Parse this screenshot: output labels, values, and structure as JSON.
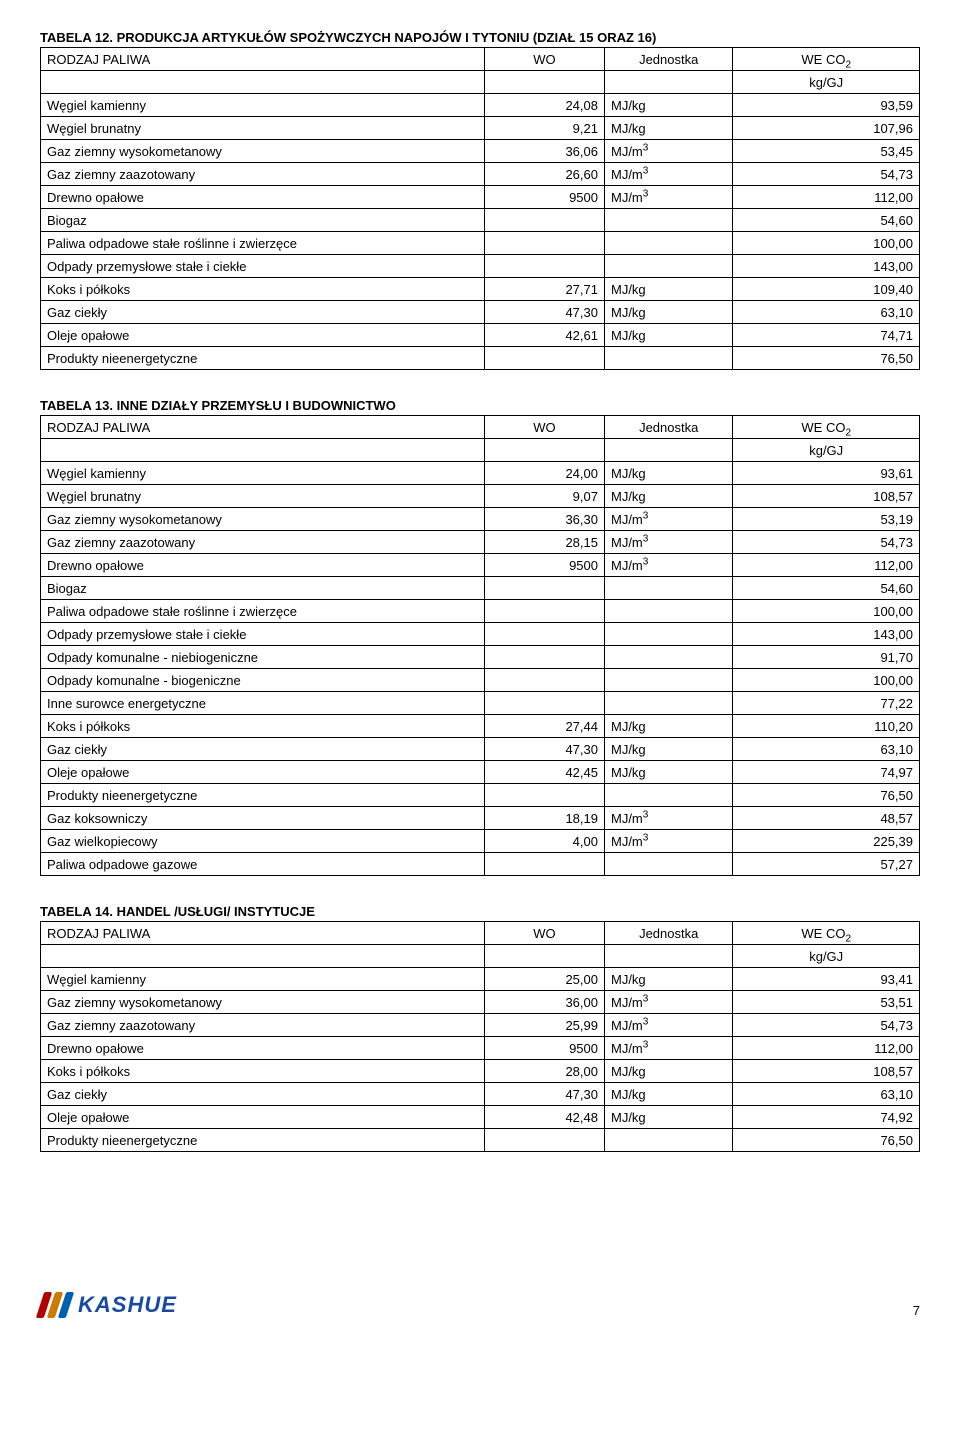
{
  "tables": [
    {
      "caption": "TABELA 12. PRODUKCJA ARTYKUŁÓW SPOŻYWCZYCH NAPOJÓW I TYTONIU (DZIAŁ 15 ORAZ 16)",
      "header": {
        "c0": "RODZAJ PALIWA",
        "c1": "WO",
        "c2": "Jednostka",
        "c3_html": "WE CO<sub>2</sub>"
      },
      "unit_row": "kg/GJ",
      "rows": [
        {
          "name": "Węgiel kamienny",
          "wo": "24,08",
          "unit": "MJ/kg",
          "weco": "93,59"
        },
        {
          "name": "Węgiel brunatny",
          "wo": "9,21",
          "unit": "MJ/kg",
          "weco": "107,96"
        },
        {
          "name": "Gaz ziemny wysokometanowy",
          "wo": "36,06",
          "unit_html": "MJ/m<sup>3</sup>",
          "weco": "53,45"
        },
        {
          "name": "Gaz ziemny zaazotowany",
          "wo": "26,60",
          "unit_html": "MJ/m<sup>3</sup>",
          "weco": "54,73"
        },
        {
          "name": "Drewno opałowe",
          "wo": "9500",
          "unit_html": "MJ/m<sup>3</sup>",
          "weco": "112,00"
        },
        {
          "name": "Biogaz",
          "wo": "",
          "unit": "",
          "weco": "54,60"
        },
        {
          "name": "Paliwa odpadowe stałe roślinne i zwierzęce",
          "wo": "",
          "unit": "",
          "weco": "100,00"
        },
        {
          "name": "Odpady przemysłowe stałe i ciekłe",
          "wo": "",
          "unit": "",
          "weco": "143,00"
        },
        {
          "name": "Koks i półkoks",
          "wo": "27,71",
          "unit": "MJ/kg",
          "weco": "109,40"
        },
        {
          "name": "Gaz ciekły",
          "wo": "47,30",
          "unit": "MJ/kg",
          "weco": "63,10"
        },
        {
          "name": "Oleje opałowe",
          "wo": "42,61",
          "unit": "MJ/kg",
          "weco": "74,71"
        },
        {
          "name": "Produkty nieenergetyczne",
          "wo": "",
          "unit": "",
          "weco": "76,50"
        }
      ]
    },
    {
      "caption": "TABELA 13. INNE DZIAŁY PRZEMYSŁU I BUDOWNICTWO",
      "header": {
        "c0": "RODZAJ PALIWA",
        "c1": "WO",
        "c2": "Jednostka",
        "c3_html": "WE CO<sub>2</sub>"
      },
      "unit_row": "kg/GJ",
      "rows": [
        {
          "name": "Węgiel kamienny",
          "wo": "24,00",
          "unit": "MJ/kg",
          "weco": "93,61"
        },
        {
          "name": "Węgiel brunatny",
          "wo": "9,07",
          "unit": "MJ/kg",
          "weco": "108,57"
        },
        {
          "name": "Gaz ziemny wysokometanowy",
          "wo": "36,30",
          "unit_html": "MJ/m<sup>3</sup>",
          "weco": "53,19"
        },
        {
          "name": "Gaz ziemny zaazotowany",
          "wo": "28,15",
          "unit_html": "MJ/m<sup>3</sup>",
          "weco": "54,73"
        },
        {
          "name": "Drewno opałowe",
          "wo": "9500",
          "unit_html": "MJ/m<sup>3</sup>",
          "weco": "112,00"
        },
        {
          "name": "Biogaz",
          "wo": "",
          "unit": "",
          "weco": "54,60"
        },
        {
          "name": "Paliwa odpadowe stałe roślinne i zwierzęce",
          "wo": "",
          "unit": "",
          "weco": "100,00"
        },
        {
          "name": "Odpady przemysłowe stałe i ciekłe",
          "wo": "",
          "unit": "",
          "weco": "143,00"
        },
        {
          "name": "Odpady komunalne - niebiogeniczne",
          "wo": "",
          "unit": "",
          "weco": "91,70"
        },
        {
          "name": "Odpady komunalne - biogeniczne",
          "wo": "",
          "unit": "",
          "weco": "100,00"
        },
        {
          "name": "Inne surowce energetyczne",
          "wo": "",
          "unit": "",
          "weco": "77,22"
        },
        {
          "name": "Koks i półkoks",
          "wo": "27,44",
          "unit": "MJ/kg",
          "weco": "110,20"
        },
        {
          "name": "Gaz ciekły",
          "wo": "47,30",
          "unit": "MJ/kg",
          "weco": "63,10"
        },
        {
          "name": "Oleje opałowe",
          "wo": "42,45",
          "unit": "MJ/kg",
          "weco": "74,97"
        },
        {
          "name": "Produkty nieenergetyczne",
          "wo": "",
          "unit": "",
          "weco": "76,50"
        },
        {
          "name": "Gaz koksowniczy",
          "wo": "18,19",
          "unit_html": "MJ/m<sup>3</sup>",
          "weco": "48,57"
        },
        {
          "name": "Gaz wielkopiecowy",
          "wo": "4,00",
          "unit_html": "MJ/m<sup>3</sup>",
          "weco": "225,39"
        },
        {
          "name": "Paliwa odpadowe gazowe",
          "wo": "",
          "unit": "",
          "weco": "57,27"
        }
      ]
    },
    {
      "caption": "TABELA 14. HANDEL /USŁUGI/ INSTYTUCJE",
      "header": {
        "c0": "RODZAJ PALIWA",
        "c1": "WO",
        "c2": "Jednostka",
        "c3_html": "WE CO<sub>2</sub>"
      },
      "unit_row": "kg/GJ",
      "rows": [
        {
          "name": "Węgiel kamienny",
          "wo": "25,00",
          "unit": "MJ/kg",
          "weco": "93,41"
        },
        {
          "name": "Gaz ziemny wysokometanowy",
          "wo": "36,00",
          "unit_html": "MJ/m<sup>3</sup>",
          "weco": "53,51"
        },
        {
          "name": "Gaz ziemny zaazotowany",
          "wo": "25,99",
          "unit_html": "MJ/m<sup>3</sup>",
          "weco": "54,73"
        },
        {
          "name": "Drewno opałowe",
          "wo": "9500",
          "unit_html": "MJ/m<sup>3</sup>",
          "weco": "112,00"
        },
        {
          "name": "Koks i półkoks",
          "wo": "28,00",
          "unit": "MJ/kg",
          "weco": "108,57"
        },
        {
          "name": "Gaz ciekły",
          "wo": "47,30",
          "unit": "MJ/kg",
          "weco": "63,10"
        },
        {
          "name": "Oleje opałowe",
          "wo": "42,48",
          "unit": "MJ/kg",
          "weco": "74,92"
        },
        {
          "name": "Produkty nieenergetyczne",
          "wo": "",
          "unit": "",
          "weco": "76,50"
        }
      ]
    }
  ],
  "logo_text": "KASHUE",
  "page_number": "7",
  "colors": {
    "text": "#000000",
    "background": "#ffffff",
    "border": "#000000",
    "logo_blue": "#1a4aa0",
    "stripe_red": "#b30000",
    "stripe_orange": "#cc7a00",
    "stripe_blue": "#0060b0"
  }
}
